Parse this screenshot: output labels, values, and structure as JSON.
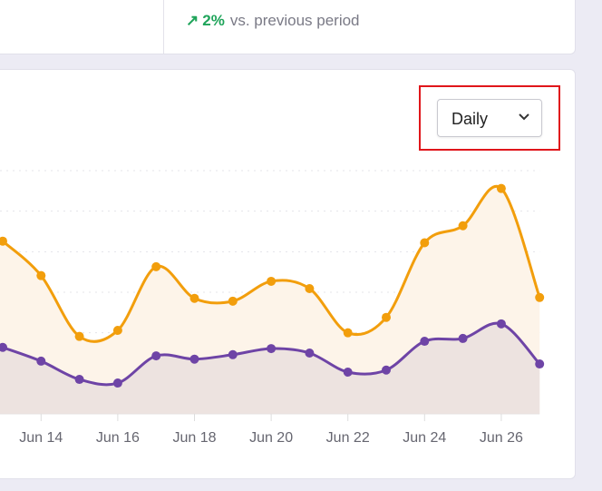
{
  "summary": {
    "trend_icon": "arrow-up-right-icon",
    "change": "2%",
    "comparison": "vs. previous period",
    "trend_color": "#1fa45a"
  },
  "interval_select": {
    "selected": "Daily",
    "icon": "chevron-down-icon"
  },
  "chart_data": {
    "type": "area",
    "title": "",
    "xlabel": "",
    "ylabel": "",
    "x": [
      "Jun 13",
      "Jun 14",
      "Jun 15",
      "Jun 16",
      "Jun 17",
      "Jun 18",
      "Jun 19",
      "Jun 20",
      "Jun 21",
      "Jun 22",
      "Jun 23",
      "Jun 24",
      "Jun 25",
      "Jun 26",
      "Jun 27"
    ],
    "x_tick_labels": [
      "Jun 14",
      "Jun 16",
      "Jun 18",
      "Jun 20",
      "Jun 22",
      "Jun 24",
      "Jun 26"
    ],
    "ylim": [
      0,
      60
    ],
    "grid": "horizontal dotted",
    "y_tick_labels_visible": false,
    "series": [
      {
        "color": "#f29e0c",
        "fill": "#fdf4e9",
        "values": [
          42.6,
          34.1,
          19.1,
          20.6,
          36.3,
          28.5,
          27.8,
          32.7,
          30.9,
          20.0,
          23.8,
          42.2,
          46.4,
          55.6,
          28.7
        ]
      },
      {
        "color": "#6e44a6",
        "fill": "#ede3e0",
        "values": [
          16.4,
          13.0,
          8.5,
          7.6,
          14.3,
          13.5,
          14.6,
          16.1,
          15.0,
          10.3,
          10.8,
          17.9,
          18.6,
          22.2,
          12.3
        ]
      }
    ]
  }
}
